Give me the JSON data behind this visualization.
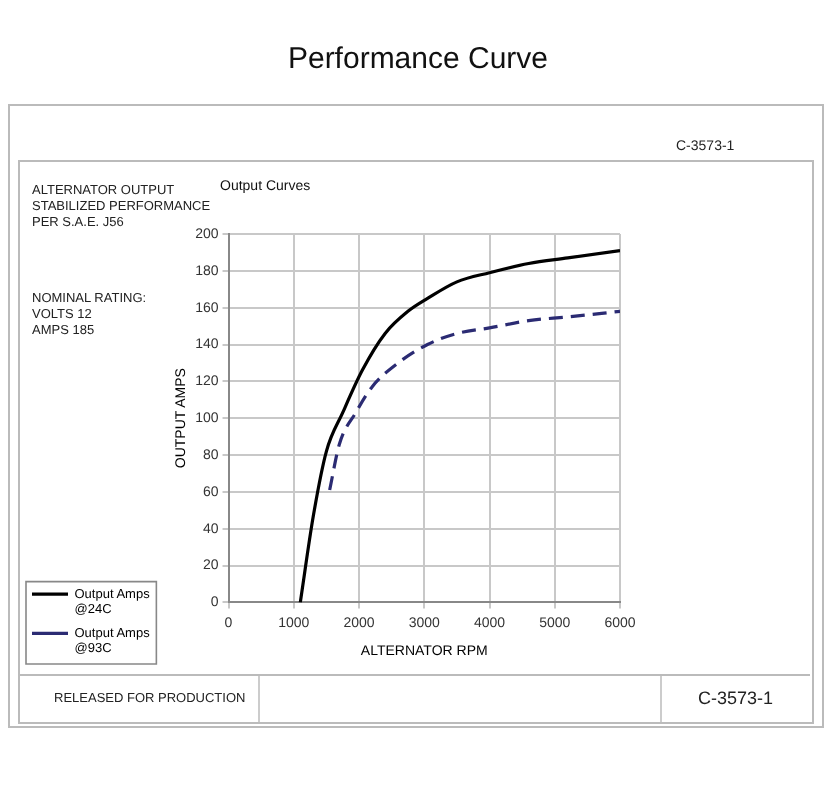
{
  "chart_data": {
    "type": "line",
    "title": "Performance Curve",
    "subtitle": "Output Curves",
    "xlabel": "ALTERNATOR RPM",
    "ylabel": "OUTPUT AMPS",
    "annotations": [
      "ALTERNATOR OUTPUT\nSTABILIZED PERFORMANCE\nPER S.A.E. J56",
      "NOMINAL RATING:\nVOLTS 12\nAMPS 185",
      "C-3573-1",
      "RELEASED FOR PRODUCTION",
      "C-3573-1"
    ],
    "series": [
      {
        "name": "Output Amps @24C",
        "color": "#000000",
        "line_style": "solid",
        "x": [
          1100,
          1300,
          1500,
          1750,
          2050,
          2400,
          2750,
          3050,
          3500,
          4000,
          4600,
          5200,
          6000
        ],
        "values": [
          0,
          47,
          82,
          103,
          126,
          146,
          158,
          165,
          174,
          179,
          184,
          187,
          191
        ]
      },
      {
        "name": "Output Amps @93C",
        "color": "#2b2b73",
        "line_style": "dashed",
        "x": [
          1550,
          1700,
          1950,
          2200,
          2600,
          3050,
          3500,
          4000,
          4600,
          5200,
          6000
        ],
        "values": [
          61,
          86,
          103,
          117,
          130,
          140,
          146,
          149,
          153,
          155,
          158
        ]
      }
    ],
    "xlim": [
      0,
      6000
    ],
    "xticks": [
      0,
      1000,
      2000,
      3000,
      4000,
      5000,
      6000
    ],
    "ylim": [
      0,
      200
    ],
    "yticks": [
      0,
      20,
      40,
      60,
      80,
      100,
      120,
      140,
      160,
      180,
      200
    ],
    "grid": true,
    "legend": "bottom left",
    "marker": "none"
  }
}
